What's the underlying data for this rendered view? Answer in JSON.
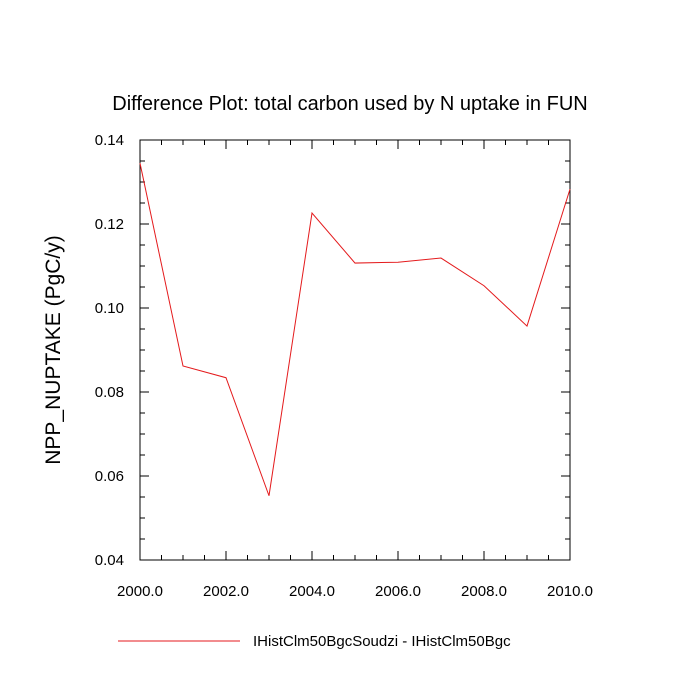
{
  "chart_data": {
    "type": "line",
    "title": "Difference Plot: total carbon used by N uptake in FUN",
    "xlabel": "",
    "ylabel": "NPP_NUPTAKE  (PgC/y)",
    "xlim": [
      2000,
      2010
    ],
    "ylim": [
      0.04,
      0.14
    ],
    "x_ticks": [
      2000,
      2002,
      2004,
      2006,
      2008,
      2010
    ],
    "x_tick_labels": [
      "2000.0",
      "2002.0",
      "2004.0",
      "2006.0",
      "2008.0",
      "2010.0"
    ],
    "y_ticks": [
      0.04,
      0.06,
      0.08,
      0.1,
      0.12,
      0.14
    ],
    "y_tick_labels": [
      "0.04",
      "0.06",
      "0.08",
      "0.10",
      "0.12",
      "0.14"
    ],
    "grid": false,
    "legend_position": "bottom",
    "series": [
      {
        "name": "IHistClm50BgcSoudzi - IHistClm50Bgc",
        "color": "#e41a1c",
        "x": [
          2000,
          2001,
          2002,
          2003,
          2004,
          2005,
          2006,
          2007,
          2008,
          2009,
          2010
        ],
        "y": [
          0.1345,
          0.0862,
          0.0834,
          0.0553,
          0.1226,
          0.1107,
          0.1109,
          0.1119,
          0.1053,
          0.0957,
          0.1283
        ]
      }
    ]
  }
}
